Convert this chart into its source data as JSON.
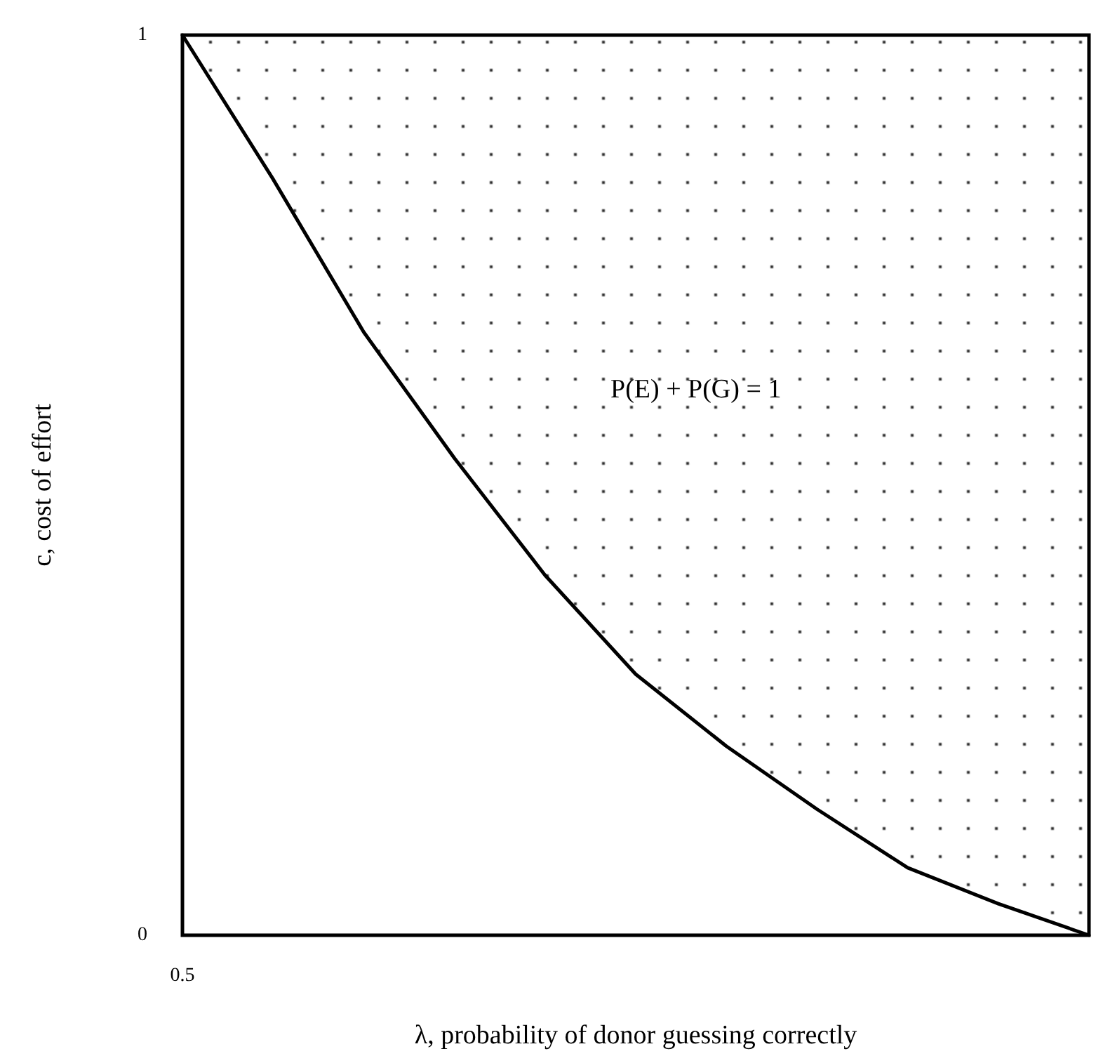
{
  "chart_data": {
    "type": "line",
    "xlabel": "λ, probability of donor guessing correctly",
    "ylabel": "c, cost of effort",
    "categories": [
      "0.5",
      null,
      null,
      null,
      null,
      null,
      null,
      null,
      null,
      null,
      null
    ],
    "series": [
      {
        "color": "#000000",
        "values": [
          1,
          0.84,
          0.67,
          0.53,
          0.4,
          0.29,
          0.21,
          0.14,
          0.075,
          0.035,
          0
        ],
        "lower": [
          1,
          0.84,
          0.67,
          0.53,
          0.4,
          0.29,
          0.21,
          0.14,
          0.075,
          0.035,
          0
        ],
        "upper": [
          1,
          1,
          1,
          1,
          1,
          1,
          1,
          1,
          1,
          1,
          1
        ]
      }
    ],
    "ylim": [
      0,
      1
    ],
    "yticks": [
      0,
      1
    ],
    "grid": false,
    "marker": "none",
    "line_style": "solid",
    "annotations": [
      "P(E) + P(G) = 1"
    ]
  }
}
